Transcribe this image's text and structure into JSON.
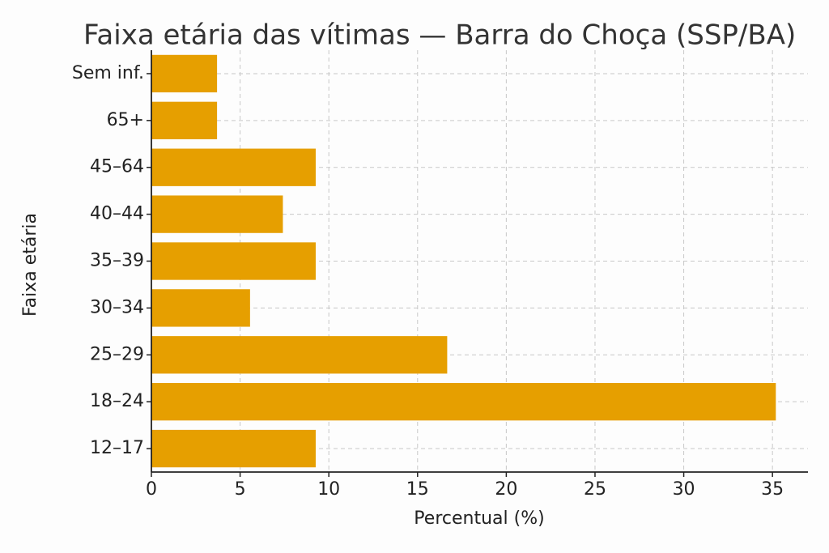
{
  "chart_data": {
    "type": "bar",
    "orientation": "horizontal",
    "title": "Faixa etária das vítimas — Barra do Choça (SSP/BA)",
    "x_label": "Percentual (%)",
    "y_label": "Faixa etária",
    "categories": [
      "12–17",
      "18–24",
      "25–29",
      "30–34",
      "35–39",
      "40–44",
      "45–64",
      "65+",
      "Sem inf."
    ],
    "values": [
      9.26,
      35.19,
      16.67,
      5.56,
      9.26,
      7.41,
      9.26,
      3.7,
      3.7
    ],
    "color": "#e69f00",
    "xlim": [
      0,
      37
    ],
    "xticks": [
      0,
      5,
      10,
      15,
      20,
      25,
      30,
      35
    ],
    "grid": true
  }
}
